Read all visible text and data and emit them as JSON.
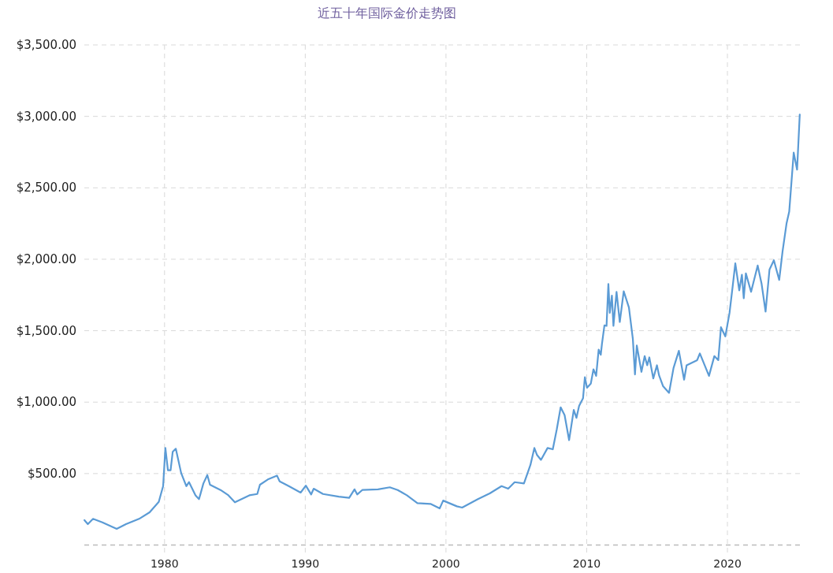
{
  "chart_data": {
    "type": "line",
    "title": "近五十年国际金价走势图",
    "x": [
      1974.31,
      1974.55,
      1974.92,
      1975.58,
      1976.6,
      1977.26,
      1978.19,
      1978.94,
      1979.59,
      1979.9,
      1980.06,
      1980.24,
      1980.43,
      1980.58,
      1980.8,
      1981.18,
      1981.55,
      1981.74,
      1982.2,
      1982.45,
      1982.76,
      1983.04,
      1983.23,
      1983.98,
      1984.54,
      1985.0,
      1986.03,
      1986.59,
      1986.78,
      1987.34,
      1987.99,
      1988.18,
      1988.83,
      1989.67,
      1990.04,
      1990.42,
      1990.6,
      1991.26,
      1992.38,
      1993.12,
      1993.5,
      1993.69,
      1994.05,
      1995.17,
      1996.01,
      1996.57,
      1997.22,
      1997.97,
      1998.9,
      1999.55,
      1999.8,
      2000.77,
      2001.15,
      2002.27,
      2003.11,
      2003.95,
      2004.42,
      2004.88,
      2005.54,
      2006.0,
      2006.28,
      2006.47,
      2006.75,
      2007.22,
      2007.59,
      2007.87,
      2008.15,
      2008.43,
      2008.75,
      2009.08,
      2009.27,
      2009.46,
      2009.74,
      2009.87,
      2010.02,
      2010.29,
      2010.48,
      2010.67,
      2010.85,
      2011.0,
      2011.08,
      2011.26,
      2011.41,
      2011.54,
      2011.64,
      2011.79,
      2011.9,
      2012.12,
      2012.35,
      2012.63,
      2013.0,
      2013.28,
      2013.43,
      2013.56,
      2013.89,
      2014.12,
      2014.3,
      2014.45,
      2014.73,
      2014.99,
      2015.14,
      2015.43,
      2015.85,
      2016.17,
      2016.55,
      2016.92,
      2017.1,
      2017.85,
      2018.04,
      2018.69,
      2019.07,
      2019.35,
      2019.54,
      2019.85,
      2020.15,
      2020.37,
      2020.56,
      2020.84,
      2021.03,
      2021.16,
      2021.31,
      2021.68,
      2022.15,
      2022.43,
      2022.71,
      2022.99,
      2023.3,
      2023.68,
      2023.92,
      2024.2,
      2024.39,
      2024.71,
      2024.95,
      2025.14
    ],
    "series": [
      {
        "color": "#5b9bd5",
        "values": [
          174,
          146,
          183,
          159,
          113,
          146,
          183,
          229,
          302,
          412,
          679,
          523,
          523,
          652,
          674,
          504,
          412,
          440,
          348,
          321,
          431,
          490,
          422,
          385,
          348,
          299,
          348,
          357,
          422,
          459,
          486,
          445,
          412,
          367,
          416,
          354,
          394,
          357,
          339,
          330,
          390,
          354,
          385,
          390,
          404,
          385,
          348,
          293,
          288,
          256,
          311,
          271,
          262,
          321,
          361,
          412,
          394,
          440,
          431,
          560,
          679,
          630,
          596,
          679,
          670,
          808,
          964,
          909,
          734,
          945,
          890,
          973,
          1028,
          1175,
          1101,
          1129,
          1230,
          1184,
          1368,
          1331,
          1405,
          1537,
          1534,
          1827,
          1625,
          1745,
          1534,
          1772,
          1561,
          1776,
          1662,
          1442,
          1194,
          1396,
          1212,
          1322,
          1258,
          1313,
          1166,
          1258,
          1188,
          1111,
          1065,
          1239,
          1359,
          1157,
          1258,
          1294,
          1341,
          1184,
          1322,
          1294,
          1524,
          1460,
          1625,
          1809,
          1971,
          1782,
          1892,
          1727,
          1901,
          1772,
          1956,
          1827,
          1634,
          1928,
          1993,
          1855,
          2057,
          2250,
          2333,
          2746,
          2627,
          3013
        ]
      }
    ],
    "xlim": [
      1974.3,
      2025.15
    ],
    "ylim": [
      0,
      3500
    ],
    "xticks": [
      1980,
      1990,
      2000,
      2010,
      2020
    ],
    "yticks": [
      {
        "value": 500,
        "label": "$500.00"
      },
      {
        "value": 1000,
        "label": "$1,000.00"
      },
      {
        "value": 1500,
        "label": "$1,500.00"
      },
      {
        "value": 2000,
        "label": "$2,000.00"
      },
      {
        "value": 2500,
        "label": "$2,500.00"
      },
      {
        "value": 3000,
        "label": "$3,000.00"
      },
      {
        "value": 3500,
        "label": "$3,500.00"
      }
    ],
    "grid": true,
    "line_style": "solid",
    "marker": "none"
  }
}
